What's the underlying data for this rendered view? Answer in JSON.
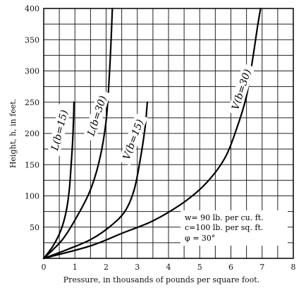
{
  "chart_data": {
    "type": "line",
    "xlabel": "Pressure, in thousands of pounds per square foot.",
    "ylabel": "Height, h, in feet.",
    "xlim": [
      0,
      8
    ],
    "ylim": [
      0,
      400
    ],
    "x_ticks": [
      "0",
      "1",
      "2",
      "3",
      "4",
      "5",
      "6",
      "7",
      "8"
    ],
    "y_ticks": [
      "50",
      "100",
      "150",
      "200",
      "250",
      "300",
      "350",
      "400"
    ],
    "grid": "on",
    "series": [
      {
        "name": "L(b=15)",
        "points": [
          [
            0,
            0
          ],
          [
            0.3,
            20
          ],
          [
            0.55,
            45
          ],
          [
            0.72,
            75
          ],
          [
            0.82,
            110
          ],
          [
            0.88,
            150
          ],
          [
            0.93,
            190
          ],
          [
            0.96,
            230
          ],
          [
            0.97,
            250
          ]
        ]
      },
      {
        "name": "L(b=30)",
        "points": [
          [
            0,
            0
          ],
          [
            0.6,
            30
          ],
          [
            1.1,
            70
          ],
          [
            1.5,
            110
          ],
          [
            1.8,
            160
          ],
          [
            2.0,
            220
          ],
          [
            2.1,
            290
          ],
          [
            2.16,
            350
          ],
          [
            2.2,
            400
          ]
        ]
      },
      {
        "name": "V(b=15)",
        "points": [
          [
            0,
            0
          ],
          [
            0.8,
            15
          ],
          [
            1.5,
            30
          ],
          [
            2.1,
            50
          ],
          [
            2.6,
            75
          ],
          [
            2.9,
            110
          ],
          [
            3.1,
            160
          ],
          [
            3.25,
            210
          ],
          [
            3.32,
            250
          ]
        ]
      },
      {
        "name": "V(b=30)",
        "points": [
          [
            0,
            0
          ],
          [
            1.5,
            20
          ],
          [
            2.5,
            40
          ],
          [
            3.5,
            60
          ],
          [
            4.5,
            90
          ],
          [
            5.2,
            120
          ],
          [
            5.8,
            160
          ],
          [
            6.2,
            210
          ],
          [
            6.5,
            260
          ],
          [
            6.7,
            320
          ],
          [
            6.85,
            370
          ],
          [
            6.95,
            400
          ]
        ]
      }
    ],
    "curve_labels": {
      "l15": "L(b=15)",
      "l30": "L(b=30)",
      "v15": "V(b=15)",
      "v30": "V(b=30)"
    },
    "annotations": {
      "line1": "w= 90 lb. per cu. ft.",
      "line2": "c=100 lb. per sq. ft.",
      "line3": "φ = 30°"
    }
  }
}
